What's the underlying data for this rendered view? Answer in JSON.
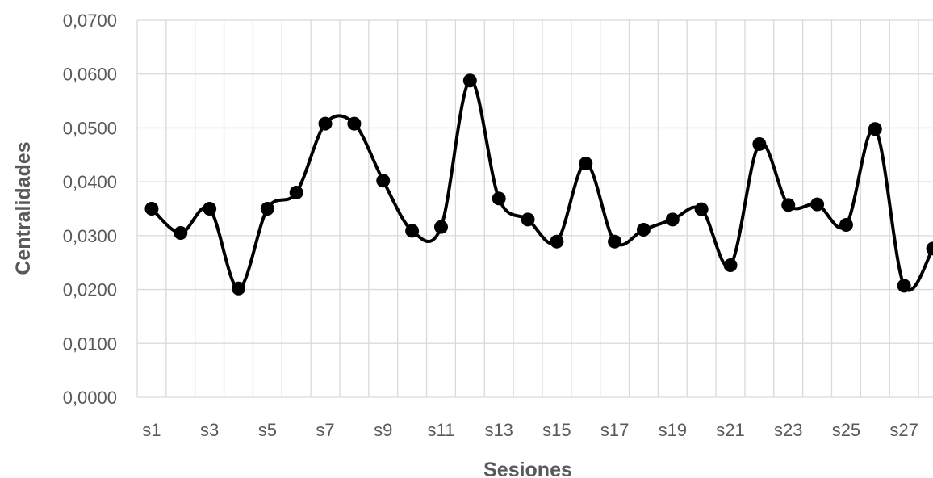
{
  "chart_data": {
    "type": "line",
    "title": "",
    "xlabel": "Sesiones",
    "ylabel": "Centralidades",
    "categories": [
      "s1",
      "s2",
      "s3",
      "s4",
      "s5",
      "s6",
      "s7",
      "s8",
      "s9",
      "s10",
      "s11",
      "s12",
      "s13",
      "s14",
      "s15",
      "s16",
      "s17",
      "s18",
      "s19",
      "s20",
      "s21",
      "s22",
      "s23",
      "s24",
      "s25",
      "s26",
      "s27",
      "s28"
    ],
    "tick_labels_shown": [
      "s1",
      "s3",
      "s5",
      "s7",
      "s9",
      "s11",
      "s13",
      "s15",
      "s17",
      "s19",
      "s21",
      "s23",
      "s25",
      "s27"
    ],
    "series": [
      {
        "values": [
          0.035,
          0.0305,
          0.035,
          0.0202,
          0.035,
          0.038,
          0.0508,
          0.0508,
          0.0402,
          0.0309,
          0.0316,
          0.0588,
          0.0369,
          0.033,
          0.0289,
          0.0434,
          0.0289,
          0.0311,
          0.033,
          0.0349,
          0.0245,
          0.047,
          0.0357,
          0.0358,
          0.032,
          0.0498,
          0.0207,
          0.0276
        ],
        "color": "#000000",
        "smooth": true,
        "marker": "circle"
      }
    ],
    "ylim": [
      0,
      0.07
    ],
    "yticks": [
      "0,0000",
      "0,0100",
      "0,0200",
      "0,0300",
      "0,0400",
      "0,0500",
      "0,0600",
      "0,0700"
    ],
    "grid": true,
    "legend": "none"
  }
}
